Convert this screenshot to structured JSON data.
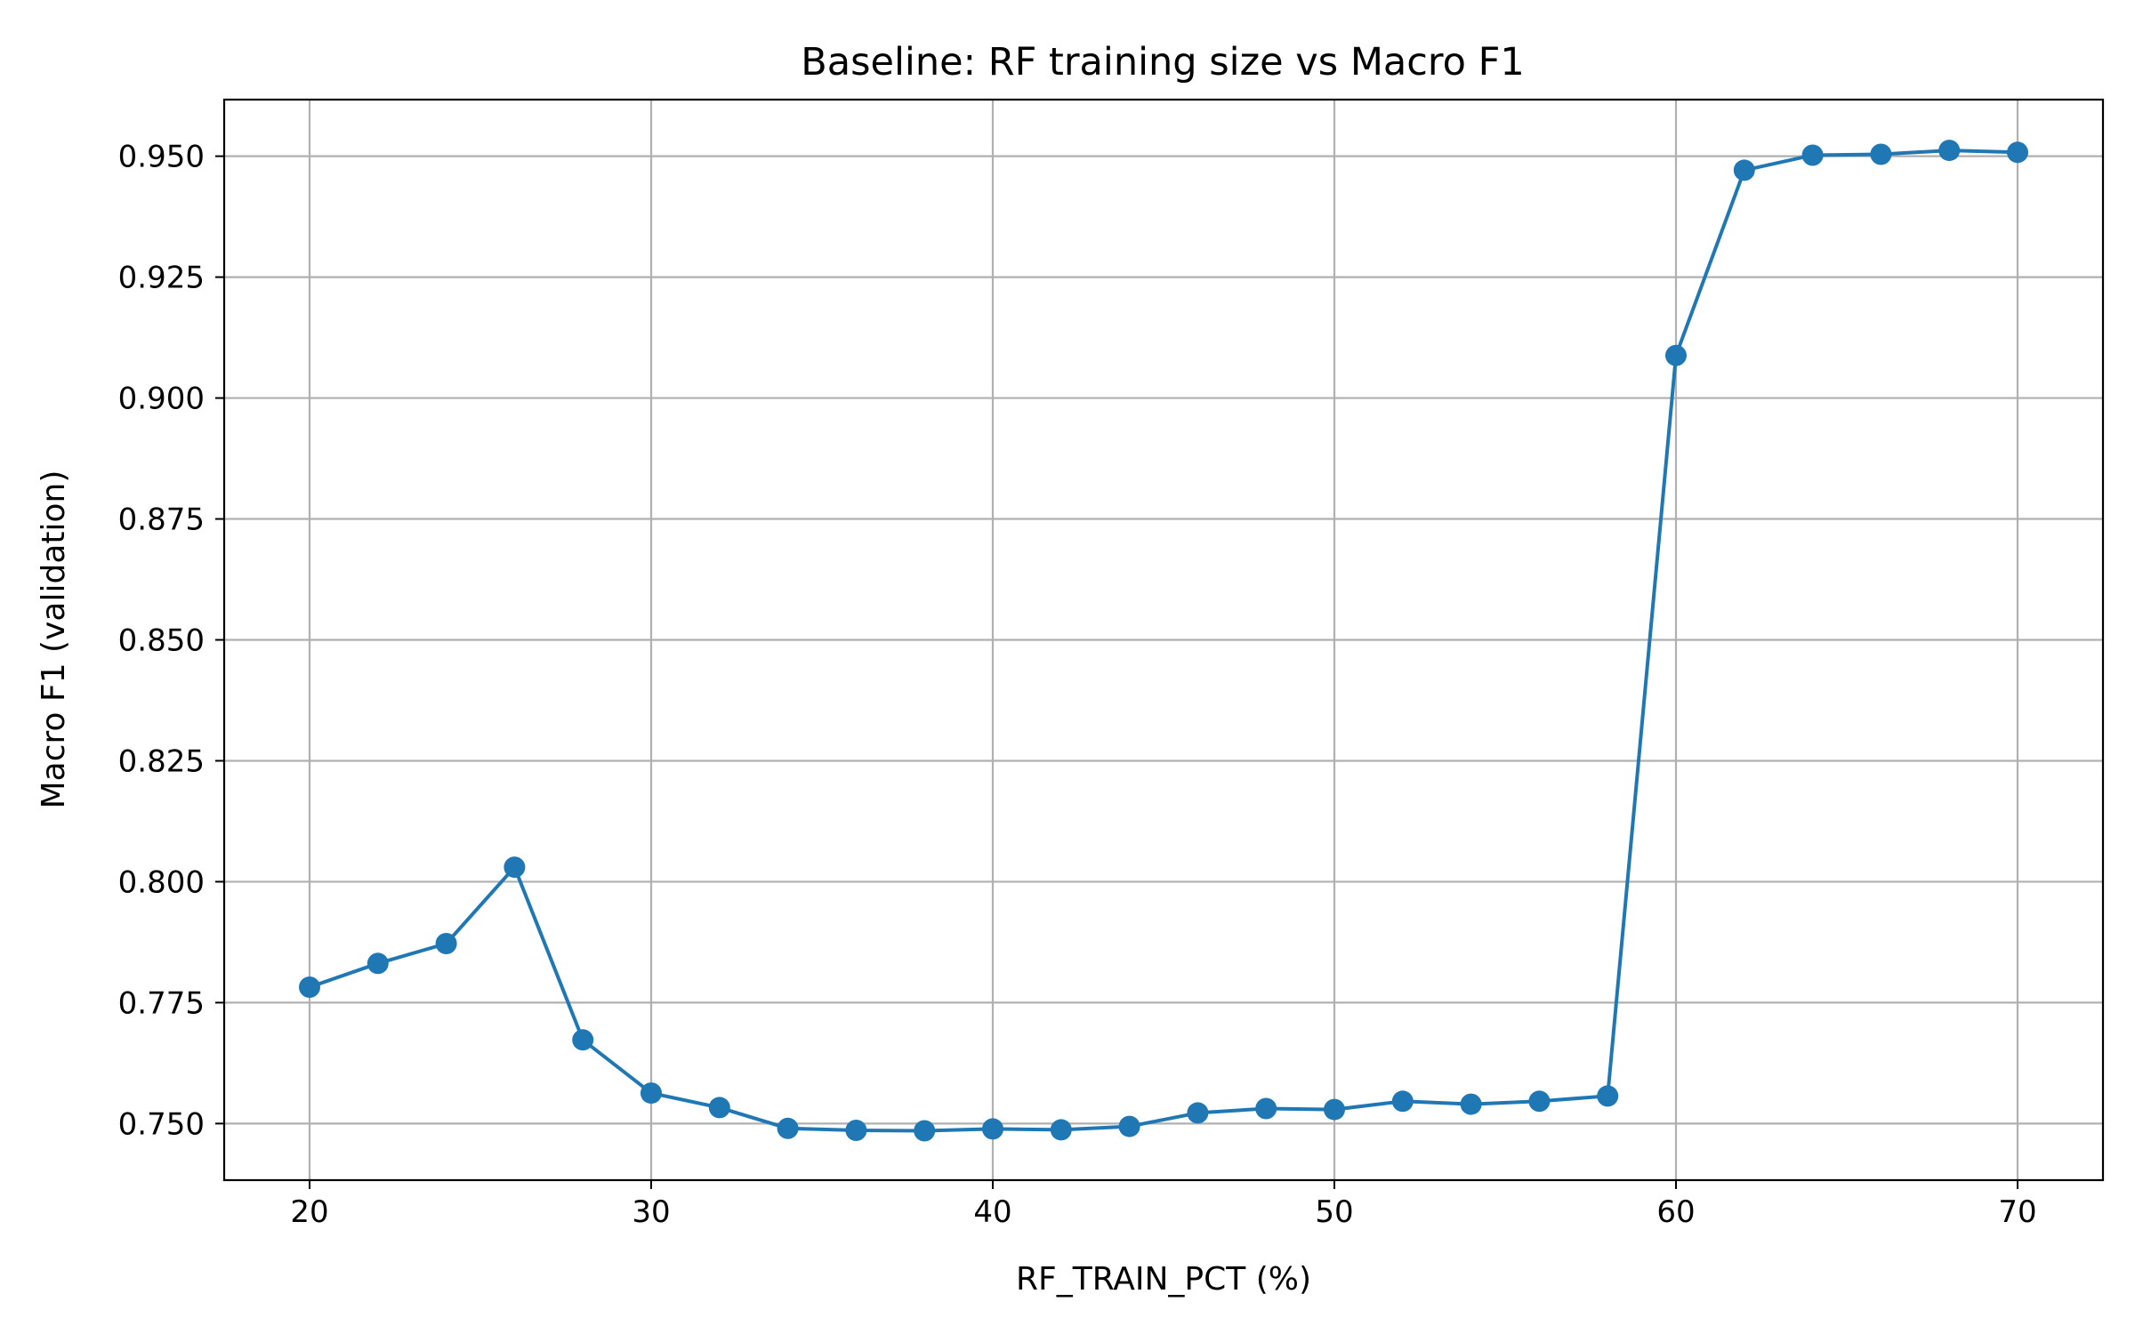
{
  "chart_data": {
    "type": "line",
    "title": "Baseline: RF training size vs Macro F1",
    "xlabel": "RF_TRAIN_PCT (%)",
    "ylabel": "Macro F1 (validation)",
    "xlim": [
      17.5,
      72.5
    ],
    "ylim": [
      0.7383,
      0.9617
    ],
    "xticks": [
      20,
      30,
      40,
      50,
      60,
      70
    ],
    "xtick_labels": [
      "20",
      "30",
      "40",
      "50",
      "60",
      "70"
    ],
    "yticks": [
      0.75,
      0.775,
      0.8,
      0.825,
      0.85,
      0.875,
      0.9,
      0.925,
      0.95
    ],
    "ytick_labels": [
      "0.750",
      "0.775",
      "0.800",
      "0.825",
      "0.850",
      "0.875",
      "0.900",
      "0.925",
      "0.950"
    ],
    "grid": true,
    "series": [
      {
        "color": "#1f77b4",
        "marker": "circle",
        "x": [
          20,
          22,
          24,
          26,
          28,
          30,
          32,
          34,
          36,
          38,
          40,
          42,
          44,
          46,
          48,
          50,
          52,
          54,
          56,
          58,
          60,
          62,
          64,
          66,
          68,
          70
        ],
        "y": [
          0.7782,
          0.7831,
          0.7872,
          0.803,
          0.7673,
          0.7563,
          0.7533,
          0.749,
          0.7486,
          0.7485,
          0.7489,
          0.7487,
          0.7494,
          0.7522,
          0.7531,
          0.7529,
          0.7546,
          0.754,
          0.7546,
          0.7557,
          0.9088,
          0.9471,
          0.9502,
          0.9504,
          0.9512,
          0.9508
        ]
      }
    ]
  }
}
